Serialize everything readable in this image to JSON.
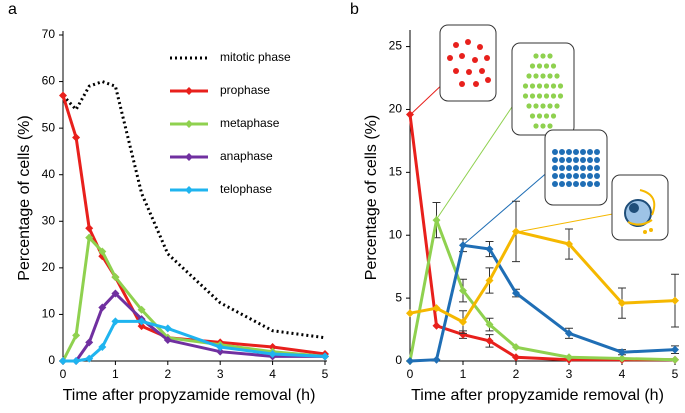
{
  "chart_data": [
    {
      "type": "line",
      "panel": "a",
      "xlabel": "Time after propyzamide removal (h)",
      "ylabel": "Percentage of cells (%)",
      "x": [
        0,
        0.25,
        0.5,
        0.75,
        1,
        1.5,
        2,
        3,
        4,
        5
      ],
      "xlim": [
        0,
        5
      ],
      "xticks": [
        0,
        1,
        2,
        3,
        4,
        5
      ],
      "ylim": [
        0,
        70
      ],
      "yticks": [
        0,
        10,
        20,
        30,
        40,
        50,
        60,
        70
      ],
      "legend": "top-right",
      "series": [
        {
          "name": "mitotic phase",
          "color": "#000000",
          "style": "dotted",
          "marker": "none",
          "values": [
            57,
            54,
            59,
            60,
            59,
            36,
            23,
            12.5,
            6.5,
            5
          ]
        },
        {
          "name": "prophase",
          "color": "#e8201c",
          "style": "solid",
          "marker": "diamond",
          "values": [
            57,
            48,
            28.5,
            22.5,
            18,
            7.5,
            5,
            4,
            3,
            1.5
          ]
        },
        {
          "name": "metaphase",
          "color": "#8fd14f",
          "style": "solid",
          "marker": "diamond",
          "values": [
            0,
            5.5,
            26.5,
            23.5,
            18,
            11,
            5,
            3.5,
            2,
            1
          ]
        },
        {
          "name": "anaphase",
          "color": "#7030a0",
          "style": "solid",
          "marker": "diamond",
          "values": [
            0,
            0,
            4,
            11.5,
            14.5,
            9,
            4.5,
            2,
            1,
            1
          ]
        },
        {
          "name": "telophase",
          "color": "#1fb4ef",
          "style": "solid",
          "marker": "diamond",
          "values": [
            0,
            0,
            0.5,
            3,
            8.5,
            8.5,
            7,
            3,
            1.5,
            1
          ]
        }
      ]
    },
    {
      "type": "line",
      "panel": "b",
      "xlabel": "Time after propyzamide removal (h)",
      "ylabel": "Percentage of cells (%)",
      "x": [
        0,
        0.5,
        1,
        1.5,
        2,
        3,
        4,
        5
      ],
      "xlim": [
        0,
        5
      ],
      "xticks": [
        0,
        1,
        2,
        3,
        4,
        5
      ],
      "ylim": [
        0,
        26
      ],
      "yticks": [
        0,
        5,
        10,
        15,
        20,
        25
      ],
      "series": [
        {
          "name": "prophase",
          "color": "#e8201c",
          "style": "solid",
          "marker": "diamond",
          "values": [
            19.6,
            2.8,
            2.1,
            1.6,
            0.3,
            0.1,
            0.1,
            0.1
          ],
          "errors": [
            null,
            null,
            0.3,
            0.5,
            null,
            null,
            null,
            null
          ]
        },
        {
          "name": "metaphase",
          "color": "#8fd14f",
          "style": "solid",
          "marker": "diamond",
          "values": [
            0,
            11.2,
            5.6,
            2.9,
            1.1,
            0.3,
            0.2,
            0.1
          ],
          "errors": [
            null,
            1.4,
            0.9,
            0.5,
            null,
            null,
            null,
            null
          ]
        },
        {
          "name": "anaphase",
          "color": "#1f6eb5",
          "style": "solid",
          "marker": "diamond",
          "values": [
            0,
            0.1,
            9.2,
            8.9,
            5.4,
            2.2,
            0.7,
            0.9
          ],
          "errors": [
            null,
            null,
            0.5,
            0.6,
            0.3,
            0.4,
            0.2,
            0.3
          ]
        },
        {
          "name": "telophase",
          "color": "#f5b800",
          "style": "solid",
          "marker": "diamond",
          "values": [
            3.8,
            4.2,
            3.1,
            6.4,
            10.3,
            9.3,
            4.6,
            4.8
          ],
          "errors": [
            null,
            null,
            0.9,
            1.0,
            2.4,
            1.2,
            1.2,
            2.1
          ]
        }
      ]
    }
  ]
}
